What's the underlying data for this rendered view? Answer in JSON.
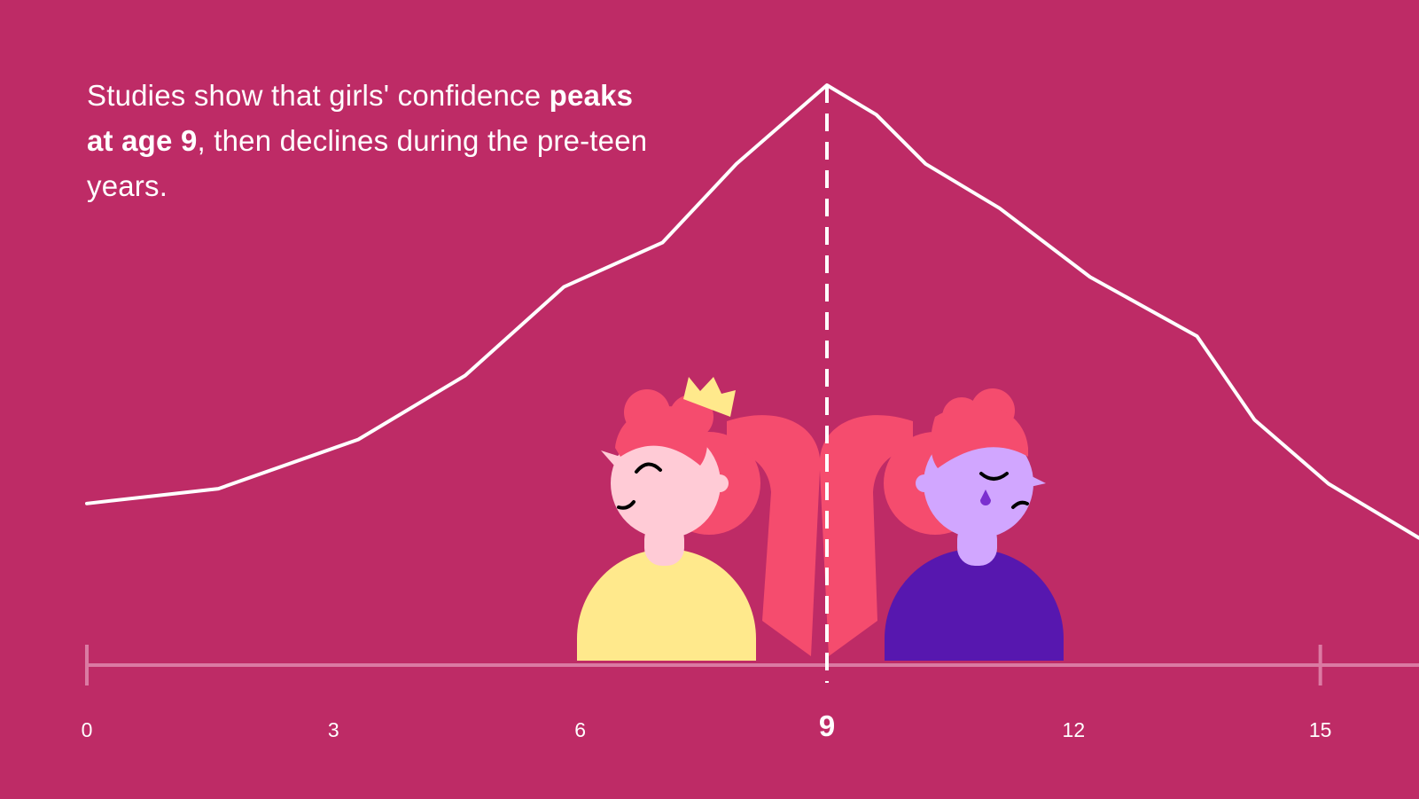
{
  "headline": {
    "part1": "Studies show that girls' confidence ",
    "bold": "peaks at age 9",
    "part2": ", then declines during the pre-teen years."
  },
  "colors": {
    "background": "#BE2B66",
    "line": "#FFFFFF",
    "axis": "#DB7AA3",
    "confident_girl_shirt": "#FFE98C",
    "sad_girl_shirt": "#5717AF",
    "hair": "#F54C6E",
    "confident_girl_skin": "#FFCBD6",
    "sad_girl_skin": "#D1A6FF",
    "crown": "#FFE98C",
    "tear": "#7B2FCF"
  },
  "illustration": {
    "left_figure": "happy-girl-with-crown",
    "right_figure": "sad-girl-crying"
  },
  "chart_data": {
    "type": "line",
    "title": "",
    "xlabel": "",
    "ylabel": "",
    "xlim": [
      0,
      16.2
    ],
    "ylim": [
      0,
      100
    ],
    "xticks": [
      0,
      3,
      6,
      9,
      12,
      15
    ],
    "highlight_x": 9,
    "grid": false,
    "series": [
      {
        "x": [
          0,
          1.6,
          3.3,
          4.6,
          5.8,
          7.0,
          7.9,
          9.0,
          9.6,
          10.2,
          11.1,
          12.2,
          13.5,
          14.2,
          15.1,
          16.2
        ],
        "y": [
          15,
          18,
          28,
          41,
          59,
          68,
          84,
          100,
          94,
          84,
          75,
          61,
          49,
          32,
          19,
          8
        ]
      }
    ]
  }
}
